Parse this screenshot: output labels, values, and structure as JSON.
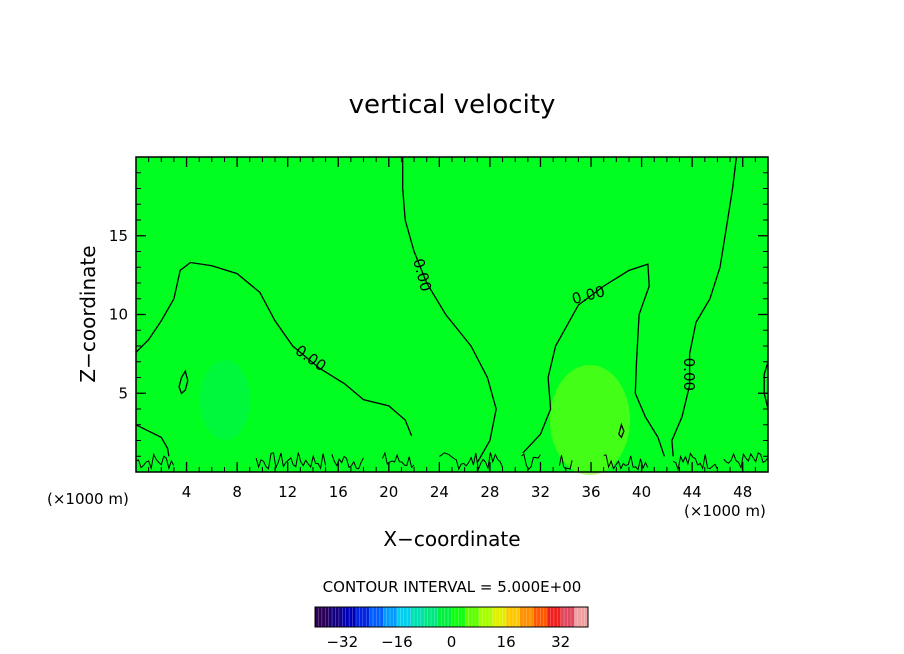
{
  "chart_data": {
    "type": "heatmap",
    "title": "vertical velocity",
    "xlabel": "X−coordinate",
    "ylabel": "Z−coordinate",
    "x_unit": "(×1000 m)",
    "x_unit_right": "(×1000 m)",
    "xlim": [
      0,
      50
    ],
    "ylim": [
      0,
      20
    ],
    "x_ticks": [
      4,
      8,
      12,
      16,
      20,
      24,
      28,
      32,
      36,
      40,
      44,
      48
    ],
    "y_ticks": [
      5,
      10,
      15
    ],
    "x_tick_labels": [
      "4",
      "8",
      "12",
      "16",
      "20",
      "24",
      "28",
      "32",
      "36",
      "40",
      "44",
      "48"
    ],
    "y_tick_labels": [
      "5",
      "10",
      "15"
    ],
    "contour_interval_text": "CONTOUR INTERVAL =  5.000E+00",
    "contour_interval": 5,
    "background_color": "#00ff20",
    "contour_labels": [
      {
        "text": "0.00",
        "x": 13.8,
        "y": 7.2,
        "angle": 35
      },
      {
        "text": "0.00",
        "x": 22.6,
        "y": 12.5,
        "angle": 75
      },
      {
        "text": "0.00",
        "x": 35.8,
        "y": 11.2,
        "angle": -15
      },
      {
        "text": "0.00",
        "x": 43.7,
        "y": 6.2,
        "angle": 90
      }
    ],
    "contours": [
      [
        [
          0,
          7.6
        ],
        [
          1,
          8.4
        ],
        [
          2,
          9.6
        ],
        [
          3,
          11
        ],
        [
          3.5,
          12.8
        ],
        [
          4.3,
          13.3
        ],
        [
          6,
          13.1
        ],
        [
          8,
          12.6
        ],
        [
          9.8,
          11.4
        ],
        [
          11,
          9.6
        ],
        [
          12.4,
          8
        ],
        [
          14.5,
          6.6
        ],
        [
          16.5,
          5.6
        ],
        [
          18,
          4.6
        ],
        [
          20,
          4.2
        ],
        [
          21.3,
          3.3
        ],
        [
          21.8,
          2.3
        ]
      ],
      [
        [
          21.1,
          20
        ],
        [
          21.1,
          18
        ],
        [
          21.3,
          16
        ],
        [
          22,
          14
        ],
        [
          23,
          12
        ],
        [
          24.5,
          10
        ],
        [
          26.5,
          8
        ],
        [
          27.8,
          6
        ],
        [
          28.5,
          4
        ],
        [
          28,
          2
        ],
        [
          27,
          0.6
        ]
      ],
      [
        [
          30.6,
          1.2
        ],
        [
          32,
          2.4
        ],
        [
          32.8,
          4
        ],
        [
          32.6,
          6
        ],
        [
          33.2,
          8
        ],
        [
          35,
          10.6
        ],
        [
          37,
          11.8
        ],
        [
          39,
          12.8
        ],
        [
          40.5,
          13.2
        ],
        [
          40.6,
          11.8
        ],
        [
          39.8,
          10
        ],
        [
          39.6,
          7
        ],
        [
          39.5,
          5
        ],
        [
          40.3,
          3.5
        ],
        [
          41.3,
          2.2
        ],
        [
          41.8,
          1
        ]
      ],
      [
        [
          47.5,
          20
        ],
        [
          47.2,
          18
        ],
        [
          46.8,
          16
        ],
        [
          46.2,
          13
        ],
        [
          45.4,
          11
        ],
        [
          44.3,
          9.5
        ],
        [
          43.8,
          7.5
        ],
        [
          43.8,
          5.5
        ],
        [
          43.2,
          3.5
        ],
        [
          42.4,
          2
        ],
        [
          42.5,
          1
        ]
      ],
      [
        [
          3.4,
          5.4
        ],
        [
          3.6,
          6
        ],
        [
          3.9,
          6.4
        ],
        [
          4.1,
          5.8
        ],
        [
          3.9,
          5.2
        ],
        [
          3.6,
          5
        ],
        [
          3.4,
          5.4
        ]
      ],
      [
        [
          38.2,
          2.4
        ],
        [
          38.4,
          3
        ],
        [
          38.6,
          2.6
        ],
        [
          38.4,
          2.2
        ],
        [
          38.2,
          2.4
        ]
      ],
      [
        [
          0,
          3.0
        ],
        [
          1,
          2.6
        ],
        [
          2,
          2.2
        ],
        [
          2.5,
          1.5
        ],
        [
          2.6,
          1
        ]
      ],
      [
        [
          50,
          7
        ],
        [
          49.7,
          6.2
        ],
        [
          49.7,
          5
        ],
        [
          50,
          4
        ]
      ]
    ],
    "colorbar": {
      "ticks": [
        -32,
        -16,
        0,
        16,
        32
      ],
      "tick_labels": [
        "−32",
        "−16",
        "0",
        "16",
        "32"
      ],
      "range": [
        -40,
        40
      ],
      "colors": [
        "#2a0058",
        "#160082",
        "#0000b8",
        "#0024e0",
        "#0060ff",
        "#009cff",
        "#00d0f0",
        "#00e0b0",
        "#00e880",
        "#00f040",
        "#10ff10",
        "#60ff00",
        "#a8ff00",
        "#e0f000",
        "#ffc800",
        "#ff9000",
        "#ff5800",
        "#f02020",
        "#e04860",
        "#f0a0a0"
      ]
    }
  }
}
